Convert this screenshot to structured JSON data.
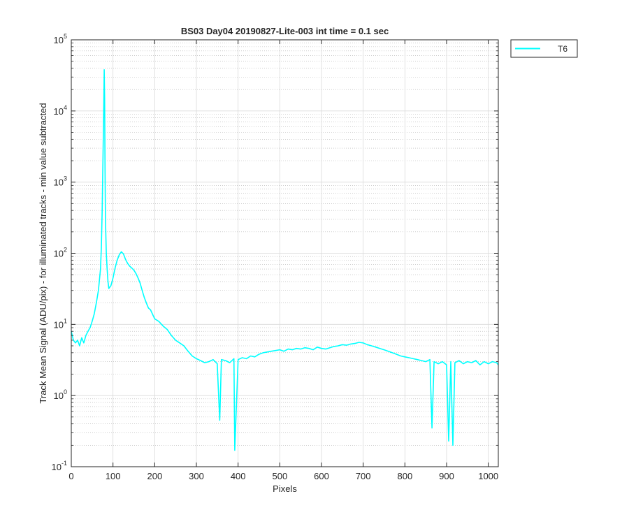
{
  "chart_data": {
    "type": "line",
    "title": "BS03 Day04 20190827-Lite-003 int time = 0.1 sec",
    "xlabel": "Pixels",
    "ylabel": "Track Mean Signal (ADU/pix) - for illuminated tracks - min value subtracted",
    "xlim": [
      0,
      1024
    ],
    "ylim": [
      0.1,
      100000
    ],
    "yscale": "log",
    "grid": true,
    "minor_grid": true,
    "legend_position": "outside top-right",
    "x_ticks": [
      "0",
      "100",
      "200",
      "300",
      "400",
      "500",
      "600",
      "700",
      "800",
      "900",
      "1000"
    ],
    "y_ticks": [
      {
        "base": "10",
        "exp": "-1"
      },
      {
        "base": "10",
        "exp": "0"
      },
      {
        "base": "10",
        "exp": "1"
      },
      {
        "base": "10",
        "exp": "2"
      },
      {
        "base": "10",
        "exp": "3"
      },
      {
        "base": "10",
        "exp": "4"
      },
      {
        "base": "10",
        "exp": "5"
      }
    ],
    "series": [
      {
        "name": "T6",
        "color": "#00ffff",
        "x": [
          0,
          5,
          10,
          15,
          20,
          25,
          30,
          35,
          40,
          45,
          50,
          55,
          60,
          65,
          70,
          72,
          74,
          76,
          78,
          79,
          80,
          81,
          82,
          84,
          86,
          88,
          90,
          95,
          100,
          105,
          110,
          115,
          120,
          125,
          130,
          135,
          140,
          145,
          150,
          155,
          160,
          165,
          170,
          175,
          180,
          185,
          190,
          200,
          210,
          220,
          230,
          240,
          250,
          260,
          270,
          280,
          290,
          300,
          310,
          320,
          330,
          340,
          350,
          356,
          360,
          370,
          380,
          390,
          392,
          400,
          410,
          420,
          430,
          440,
          450,
          460,
          470,
          480,
          490,
          500,
          510,
          520,
          530,
          540,
          550,
          560,
          570,
          580,
          590,
          600,
          610,
          620,
          630,
          640,
          650,
          660,
          670,
          680,
          690,
          700,
          710,
          720,
          730,
          740,
          750,
          760,
          770,
          780,
          790,
          800,
          810,
          820,
          830,
          840,
          850,
          860,
          865,
          870,
          880,
          890,
          900,
          905,
          910,
          915,
          920,
          930,
          940,
          950,
          960,
          970,
          980,
          990,
          1000,
          1010,
          1020,
          1024
        ],
        "y": [
          8,
          6,
          5.5,
          6,
          5,
          6.5,
          5.5,
          7,
          8,
          9,
          11,
          14,
          20,
          30,
          60,
          120,
          400,
          2000,
          12000,
          38000,
          15000,
          1500,
          300,
          100,
          60,
          40,
          32,
          35,
          45,
          62,
          80,
          95,
          105,
          98,
          82,
          72,
          66,
          62,
          58,
          52,
          45,
          38,
          30,
          24,
          20,
          17,
          16,
          12,
          11,
          9.5,
          8.5,
          7,
          6,
          5.5,
          5,
          4.2,
          3.6,
          3.3,
          3.1,
          2.9,
          3,
          3.2,
          2.8,
          0.45,
          3.2,
          3.1,
          2.9,
          3.3,
          0.17,
          3.2,
          3.4,
          3.3,
          3.6,
          3.5,
          3.8,
          4,
          4.1,
          4.2,
          4.3,
          4.4,
          4.2,
          4.5,
          4.4,
          4.6,
          4.5,
          4.7,
          4.6,
          4.4,
          4.8,
          4.6,
          4.5,
          4.7,
          4.9,
          5,
          5.2,
          5.1,
          5.3,
          5.4,
          5.6,
          5.5,
          5.2,
          5,
          4.8,
          4.6,
          4.4,
          4.2,
          4,
          3.8,
          3.6,
          3.5,
          3.4,
          3.3,
          3.2,
          3.1,
          3,
          3.2,
          0.35,
          3,
          2.8,
          3,
          2.7,
          0.23,
          3,
          0.2,
          2.9,
          3.1,
          2.8,
          3,
          2.9,
          3.1,
          2.7,
          3,
          2.8,
          3,
          2.9,
          2.7
        ]
      }
    ]
  }
}
